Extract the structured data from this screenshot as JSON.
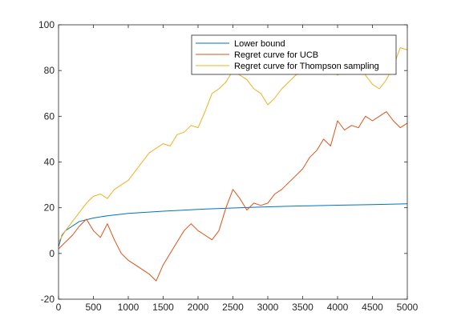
{
  "chart_data": {
    "type": "line",
    "title": "",
    "xlabel": "",
    "ylabel": "",
    "xlim": [
      0,
      5000
    ],
    "ylim": [
      -20,
      100
    ],
    "xticks": [
      0,
      500,
      1000,
      1500,
      2000,
      2500,
      3000,
      3500,
      4000,
      4500,
      5000
    ],
    "yticks": [
      -20,
      0,
      20,
      40,
      60,
      80,
      100
    ],
    "grid": false,
    "legend_position": "top-right",
    "series": [
      {
        "name": "Lower bound",
        "color": "#0072BD",
        "x": [
          0,
          50,
          100,
          200,
          300,
          500,
          700,
          1000,
          1500,
          2000,
          2500,
          3000,
          3500,
          4000,
          4500,
          5000
        ],
        "y": [
          3,
          8,
          10,
          12,
          14,
          15.5,
          16.5,
          17.5,
          18.5,
          19.3,
          19.9,
          20.4,
          20.8,
          21.1,
          21.4,
          21.7
        ]
      },
      {
        "name": "Regret curve for UCB",
        "color": "#D95319",
        "x": [
          0,
          100,
          200,
          300,
          400,
          500,
          600,
          700,
          800,
          900,
          1000,
          1100,
          1200,
          1300,
          1400,
          1500,
          1600,
          1700,
          1800,
          1900,
          2000,
          2100,
          2200,
          2300,
          2400,
          2500,
          2600,
          2700,
          2800,
          2900,
          3000,
          3100,
          3200,
          3300,
          3400,
          3500,
          3600,
          3700,
          3800,
          3900,
          4000,
          4100,
          4200,
          4300,
          4400,
          4500,
          4600,
          4700,
          4800,
          4900,
          5000
        ],
        "y": [
          2,
          5,
          8,
          12,
          15,
          10,
          7,
          13,
          6,
          0,
          -3,
          -5,
          -7,
          -9,
          -12,
          -5,
          0,
          5,
          10,
          13,
          10,
          8,
          6,
          10,
          20,
          28,
          24,
          19,
          22,
          21,
          22,
          26,
          28,
          31,
          34,
          37,
          42,
          45,
          50,
          47,
          58,
          54,
          56,
          55,
          60,
          58,
          60,
          62,
          58,
          55,
          57
        ]
      },
      {
        "name": "Regret curve for Thompson sampling",
        "color": "#EDB120",
        "x": [
          0,
          100,
          200,
          300,
          400,
          500,
          600,
          700,
          800,
          900,
          1000,
          1100,
          1200,
          1300,
          1400,
          1500,
          1600,
          1700,
          1800,
          1900,
          2000,
          2100,
          2200,
          2300,
          2400,
          2500,
          2600,
          2700,
          2800,
          2900,
          3000,
          3100,
          3200,
          3300,
          3400,
          3500,
          3600,
          3700,
          3800,
          3900,
          4000,
          4100,
          4200,
          4300,
          4400,
          4500,
          4600,
          4700,
          4800,
          4900,
          5000
        ],
        "y": [
          5,
          10,
          14,
          18,
          22,
          25,
          26,
          24,
          28,
          30,
          32,
          36,
          40,
          44,
          46,
          48,
          47,
          52,
          53,
          56,
          55,
          62,
          70,
          72,
          75,
          80,
          78,
          76,
          72,
          70,
          65,
          68,
          72,
          75,
          78,
          80,
          85,
          84,
          82,
          80,
          78,
          80,
          84,
          82,
          78,
          74,
          72,
          76,
          82,
          90,
          89
        ]
      }
    ]
  }
}
